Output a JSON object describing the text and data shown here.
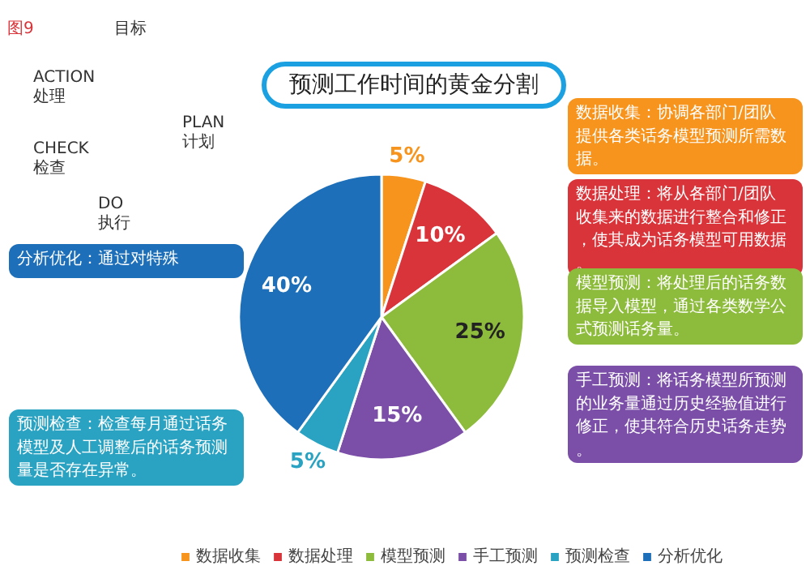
{
  "chart_data": {
    "type": "pie",
    "title": "预测工作时间的黄金分割",
    "categories": [
      "数据收集",
      "数据处理",
      "模型预测",
      "手工预测",
      "预测检查",
      "分析优化"
    ],
    "values": [
      5,
      10,
      25,
      15,
      5,
      40
    ],
    "value_labels": [
      "5%",
      "10%",
      "25%",
      "15%",
      "5%",
      "40%"
    ],
    "colors": [
      "#f7941d",
      "#d9343a",
      "#8dbb3b",
      "#7b4fa8",
      "#2aa3c3",
      "#1c6fb8"
    ],
    "legend": "bottom",
    "annotations": [
      "数据收集：协调各部门/团队提供各类话务模型预测所需数据。",
      "数据处理：将从各部门/团队收集来的数据进行整合和修正，使其成为话务模型可用数据。",
      "模型预测：将处理后的话务数据导入模型，通过各类数学公式预测话务量。",
      "手工预测：将话务模型所预测的业务量通过历史经验值进行修正，使其符合历史话务走势。",
      "预测检查：检查每月通过话务模型及人工调整后的话务预测量是否存在异常。",
      "分析优化：通过对特殊",
      "图9",
      "目标",
      "ACTION 处理",
      "PLAN 计划",
      "CHECK 检查",
      "DO 执行"
    ]
  }
}
